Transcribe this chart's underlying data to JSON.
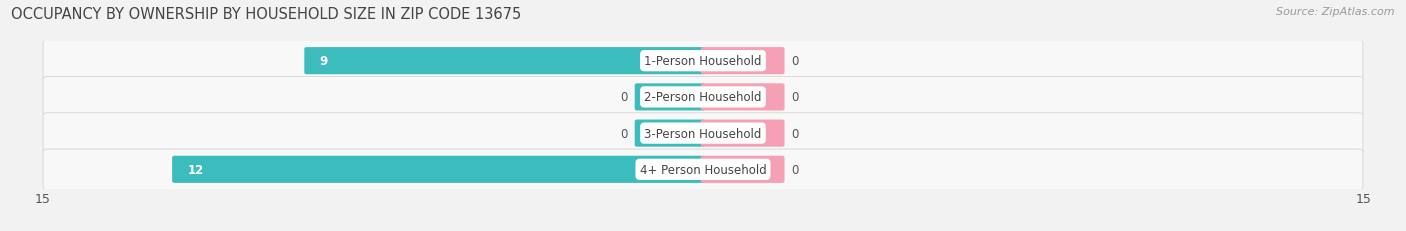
{
  "title": "OCCUPANCY BY OWNERSHIP BY HOUSEHOLD SIZE IN ZIP CODE 13675",
  "source": "Source: ZipAtlas.com",
  "categories": [
    "1-Person Household",
    "2-Person Household",
    "3-Person Household",
    "4+ Person Household"
  ],
  "owner_values": [
    9,
    0,
    0,
    12
  ],
  "renter_values": [
    0,
    0,
    0,
    0
  ],
  "xlim": [
    -15,
    15
  ],
  "owner_color": "#3CBCBC",
  "renter_color": "#F5A0B5",
  "bg_color": "#F2F2F2",
  "row_bg_odd": "#E8E8E8",
  "row_bg_even": "#F2F2F2",
  "label_bg_color": "#FFFFFF",
  "title_fontsize": 10.5,
  "source_fontsize": 8,
  "tick_fontsize": 9,
  "label_fontsize": 8.5,
  "value_fontsize": 8.5,
  "legend_fontsize": 8.5,
  "bar_height": 0.65,
  "stub_size": 1.5,
  "renter_stub_size": 1.8
}
